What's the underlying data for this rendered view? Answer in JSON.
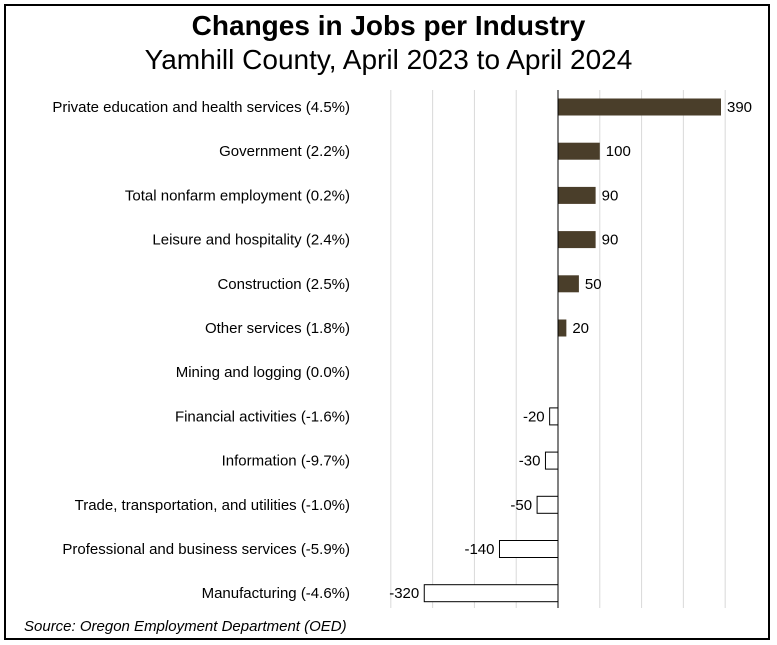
{
  "chart_data": {
    "type": "bar",
    "orientation": "horizontal",
    "title": "Changes in Jobs per Industry",
    "subtitle": "Yamhill County, April 2023 to April 2024",
    "source": "Source: Oregon Employment Department (OED)",
    "categories": [
      "Private education and health services (4.5%)",
      "Government (2.2%)",
      "Total nonfarm employment (0.2%)",
      "Leisure and hospitality (2.4%)",
      "Construction (2.5%)",
      "Other services (1.8%)",
      "Mining and logging (0.0%)",
      "Financial activities (-1.6%)",
      "Information (-9.7%)",
      "Trade, transportation, and utilities (-1.0%)",
      "Professional and business services (-5.9%)",
      "Manufacturing (-4.6%)"
    ],
    "values": [
      390,
      100,
      90,
      90,
      50,
      20,
      0,
      -20,
      -30,
      -50,
      -140,
      -320
    ],
    "value_labels": [
      "390",
      "100",
      "90",
      "90",
      "50",
      "20",
      "",
      "-20",
      "-30",
      "-50",
      "-140",
      "-320"
    ],
    "xlim": [
      -400,
      400
    ],
    "grid": true,
    "colors": {
      "positive": "#4a3e2a",
      "negative": "#ffffff",
      "outline": "#000000",
      "grid": "#d9d9d9"
    }
  }
}
